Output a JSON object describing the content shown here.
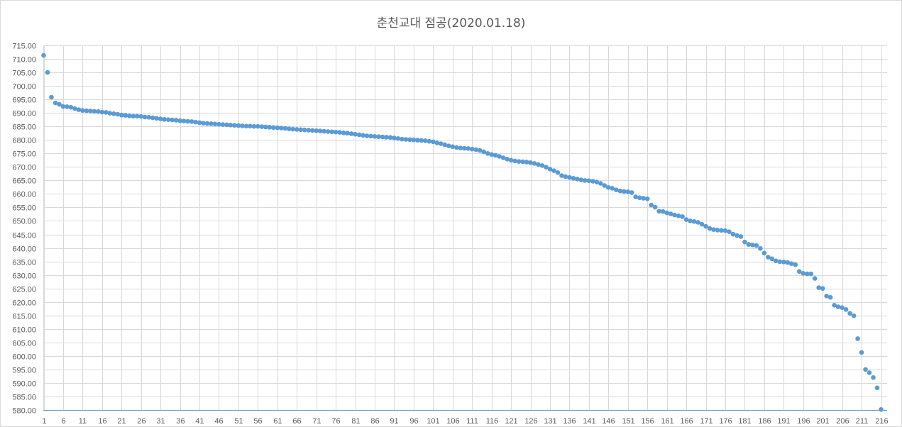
{
  "chart_data": {
    "type": "scatter",
    "title": "춘천교대 점공(2020.01.18)",
    "xlabel": "",
    "ylabel": "",
    "ylim": [
      580,
      715
    ],
    "y_ticks": [
      "580.00",
      "585.00",
      "590.00",
      "595.00",
      "600.00",
      "605.00",
      "610.00",
      "615.00",
      "620.00",
      "625.00",
      "630.00",
      "635.00",
      "640.00",
      "645.00",
      "650.00",
      "655.00",
      "660.00",
      "665.00",
      "670.00",
      "675.00",
      "680.00",
      "685.00",
      "690.00",
      "695.00",
      "700.00",
      "705.00",
      "710.00",
      "715.00"
    ],
    "x_ticks": [
      "1",
      "6",
      "11",
      "16",
      "21",
      "26",
      "31",
      "36",
      "41",
      "46",
      "51",
      "56",
      "61",
      "66",
      "71",
      "76",
      "81",
      "86",
      "91",
      "96",
      "101",
      "106",
      "111",
      "116",
      "121",
      "126",
      "131",
      "136",
      "141",
      "146",
      "151",
      "156",
      "161",
      "166",
      "171",
      "176",
      "181",
      "186",
      "191",
      "196",
      "201",
      "206",
      "211",
      "216"
    ],
    "xlim": [
      1,
      216
    ],
    "grid": true,
    "marker_color": "#5b9bd5",
    "gridline_color": "#d9d9d9",
    "values": [
      711.3,
      705.0,
      695.8,
      693.7,
      693.2,
      692.4,
      692.3,
      692.1,
      691.6,
      691.2,
      690.9,
      690.8,
      690.7,
      690.6,
      690.5,
      690.3,
      690.2,
      689.9,
      689.7,
      689.5,
      689.2,
      689.1,
      688.9,
      688.8,
      688.8,
      688.7,
      688.5,
      688.4,
      688.2,
      688.0,
      687.8,
      687.6,
      687.5,
      687.4,
      687.3,
      687.1,
      687.0,
      686.9,
      686.8,
      686.6,
      686.4,
      686.2,
      686.1,
      686.0,
      685.9,
      685.8,
      685.7,
      685.6,
      685.5,
      685.4,
      685.3,
      685.2,
      685.1,
      685.1,
      685.0,
      685.0,
      684.9,
      684.8,
      684.7,
      684.6,
      684.5,
      684.4,
      684.3,
      684.1,
      684.0,
      683.9,
      683.8,
      683.7,
      683.6,
      683.5,
      683.4,
      683.3,
      683.2,
      683.1,
      683.0,
      682.9,
      682.8,
      682.6,
      682.5,
      682.3,
      682.1,
      681.9,
      681.7,
      681.5,
      681.4,
      681.3,
      681.2,
      681.1,
      681.0,
      680.9,
      680.7,
      680.5,
      680.3,
      680.2,
      680.1,
      680.0,
      679.9,
      679.8,
      679.7,
      679.5,
      679.3,
      678.9,
      678.6,
      678.2,
      677.8,
      677.5,
      677.2,
      677.0,
      676.9,
      676.8,
      676.6,
      676.4,
      676.1,
      675.6,
      675.0,
      674.6,
      674.3,
      673.9,
      673.4,
      672.9,
      672.5,
      672.2,
      672.0,
      671.9,
      671.8,
      671.6,
      671.3,
      670.9,
      670.5,
      669.9,
      669.2,
      668.6,
      667.9,
      666.8,
      666.4,
      666.1,
      665.8,
      665.5,
      665.2,
      665.0,
      664.9,
      664.7,
      664.4,
      663.9,
      663.1,
      662.4,
      662.1,
      661.5,
      661.1,
      660.9,
      660.8,
      660.5,
      658.9,
      658.6,
      658.4,
      658.2,
      655.9,
      655.1,
      653.6,
      653.5,
      653.0,
      652.6,
      652.2,
      651.9,
      651.6,
      650.5,
      650.0,
      649.8,
      649.5,
      648.8,
      648.0,
      647.2,
      646.8,
      646.6,
      646.5,
      646.4,
      646.0,
      645.1,
      644.6,
      644.2,
      642.2,
      641.3,
      641.1,
      640.9,
      639.8,
      638.1,
      636.6,
      636.0,
      635.2,
      634.9,
      634.8,
      634.6,
      634.2,
      633.8,
      631.3,
      630.6,
      630.4,
      630.4,
      628.7,
      625.3,
      625.0,
      622.2,
      621.7,
      618.8,
      618.2,
      617.9,
      617.2,
      615.8,
      614.9,
      606.4,
      601.3,
      595.0,
      593.8,
      592.0,
      588.2,
      580.2
    ]
  }
}
